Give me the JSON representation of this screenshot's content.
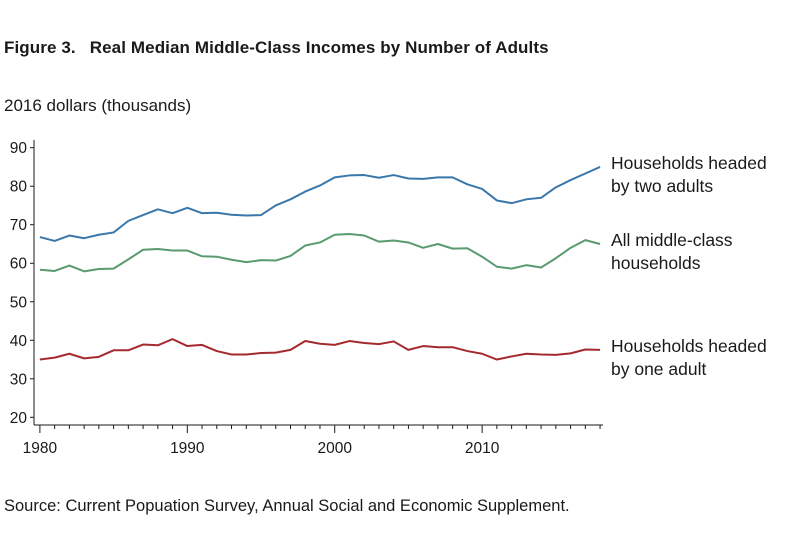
{
  "figure": {
    "number": "Figure 3.",
    "title": "Real Median Middle-Class Incomes by Number of Adults",
    "units": "2016 dollars (thousands)",
    "source": "Source: Current Popuation Survey, Annual Social and Economic Supplement."
  },
  "colors": {
    "two_adults": "#3a77aa",
    "all": "#5a9a70",
    "one_adult": "#a52a2e",
    "axis": "#1a1a1a"
  },
  "chart_data": {
    "type": "line",
    "title": "Real Median Middle-Class Incomes by Number of Adults",
    "ylabel": "2016 dollars (thousands)",
    "xlabel": "",
    "xlim": [
      1979.6,
      2018.2
    ],
    "ylim": [
      18,
      92
    ],
    "xticks": [
      1980,
      1990,
      2000,
      2010
    ],
    "yticks": [
      20,
      30,
      40,
      50,
      60,
      70,
      80,
      90
    ],
    "grid": false,
    "legend": "direct labels at right end of lines",
    "x": [
      1980,
      1981,
      1982,
      1983,
      1984,
      1985,
      1986,
      1987,
      1988,
      1989,
      1990,
      1991,
      1992,
      1993,
      1994,
      1995,
      1996,
      1997,
      1998,
      1999,
      2000,
      2001,
      2002,
      2003,
      2004,
      2005,
      2006,
      2007,
      2008,
      2009,
      2010,
      2011,
      2012,
      2013,
      2014,
      2015,
      2016,
      2017,
      2018
    ],
    "series": [
      {
        "key": "two_adults",
        "name": [
          "Households headed",
          "by two adults"
        ],
        "values": [
          66.8,
          65.8,
          67.2,
          66.5,
          67.4,
          68.0,
          71.0,
          72.5,
          74.0,
          73.0,
          74.4,
          73.0,
          73.1,
          72.6,
          72.4,
          72.5,
          75.0,
          76.6,
          78.6,
          80.2,
          82.3,
          82.8,
          82.9,
          82.2,
          82.9,
          82.0,
          81.9,
          82.3,
          82.3,
          80.5,
          79.3,
          76.3,
          75.6,
          76.6,
          77.0,
          79.7,
          81.6,
          83.3,
          85.0
        ]
      },
      {
        "key": "all",
        "name": [
          "All middle-class",
          "households"
        ],
        "values": [
          58.3,
          58.0,
          59.4,
          57.9,
          58.5,
          58.6,
          61.0,
          63.5,
          63.7,
          63.3,
          63.3,
          61.8,
          61.7,
          60.9,
          60.3,
          60.8,
          60.7,
          61.9,
          64.6,
          65.4,
          67.4,
          67.6,
          67.2,
          65.6,
          65.9,
          65.4,
          64.0,
          65.0,
          63.8,
          63.9,
          61.7,
          59.1,
          58.6,
          59.5,
          58.9,
          61.3,
          64.0,
          66.0,
          65.0
        ]
      },
      {
        "key": "one_adult",
        "name": [
          "Households headed",
          "by one adult"
        ],
        "values": [
          35.0,
          35.5,
          36.5,
          35.3,
          35.7,
          37.4,
          37.4,
          38.9,
          38.7,
          40.3,
          38.5,
          38.8,
          37.2,
          36.3,
          36.3,
          36.7,
          36.8,
          37.5,
          39.8,
          39.1,
          38.8,
          39.8,
          39.3,
          39.0,
          39.7,
          37.5,
          38.5,
          38.2,
          38.2,
          37.2,
          36.5,
          35.0,
          35.8,
          36.5,
          36.3,
          36.2,
          36.6,
          37.6,
          37.5
        ]
      }
    ]
  }
}
